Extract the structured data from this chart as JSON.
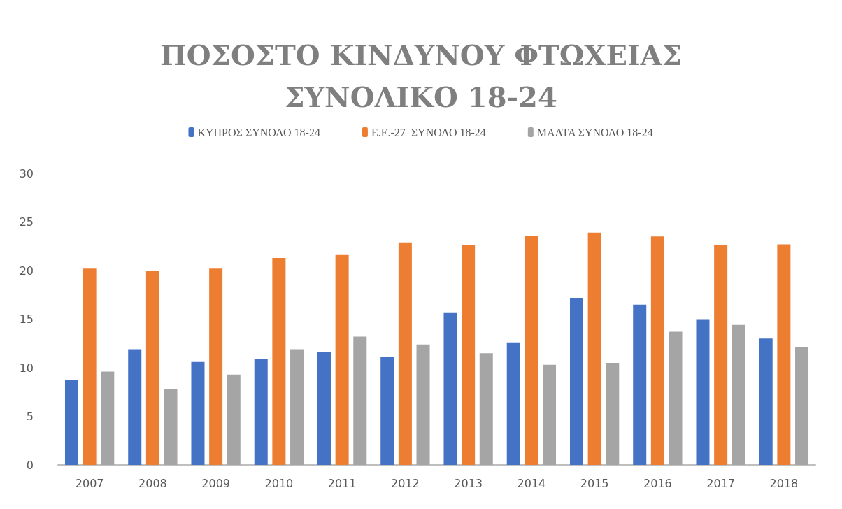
{
  "chart_data": {
    "type": "bar",
    "title": "ΠΟΣΟΣΤΟ ΚΙΝΔΥΝΟΥ ΦΤΩΧΕΙΑΣ\nΣΥΝΟΛΙΚΟ 18-24",
    "categories": [
      "2007",
      "2008",
      "2009",
      "2010",
      "2011",
      "2012",
      "2013",
      "2014",
      "2015",
      "2016",
      "2017",
      "2018"
    ],
    "series": [
      {
        "name": "ΚΥΠΡΟΣ ΣΥΝΟΛΟ 18-24",
        "color": "#4472c4",
        "values": [
          8.7,
          11.9,
          10.6,
          10.9,
          11.6,
          11.1,
          15.7,
          12.6,
          17.2,
          16.5,
          15.0,
          13.0
        ]
      },
      {
        "name": "Ε.Ε.-27  ΣΥΝΟΛΟ 18-24",
        "color": "#ed7d31",
        "values": [
          20.2,
          20.0,
          20.2,
          21.3,
          21.6,
          22.9,
          22.6,
          23.6,
          23.9,
          23.5,
          22.6,
          22.7
        ]
      },
      {
        "name": "ΜΑΛΤΑ ΣΥΝΟΛΟ 18-24",
        "color": "#a5a5a5",
        "values": [
          9.6,
          7.8,
          9.3,
          11.9,
          13.2,
          12.4,
          11.5,
          10.3,
          10.5,
          13.7,
          14.4,
          12.1
        ]
      }
    ],
    "ylim": [
      0,
      30
    ],
    "yticks": [
      0,
      5,
      10,
      15,
      20,
      25,
      30
    ],
    "grid": false,
    "legend": "top"
  }
}
